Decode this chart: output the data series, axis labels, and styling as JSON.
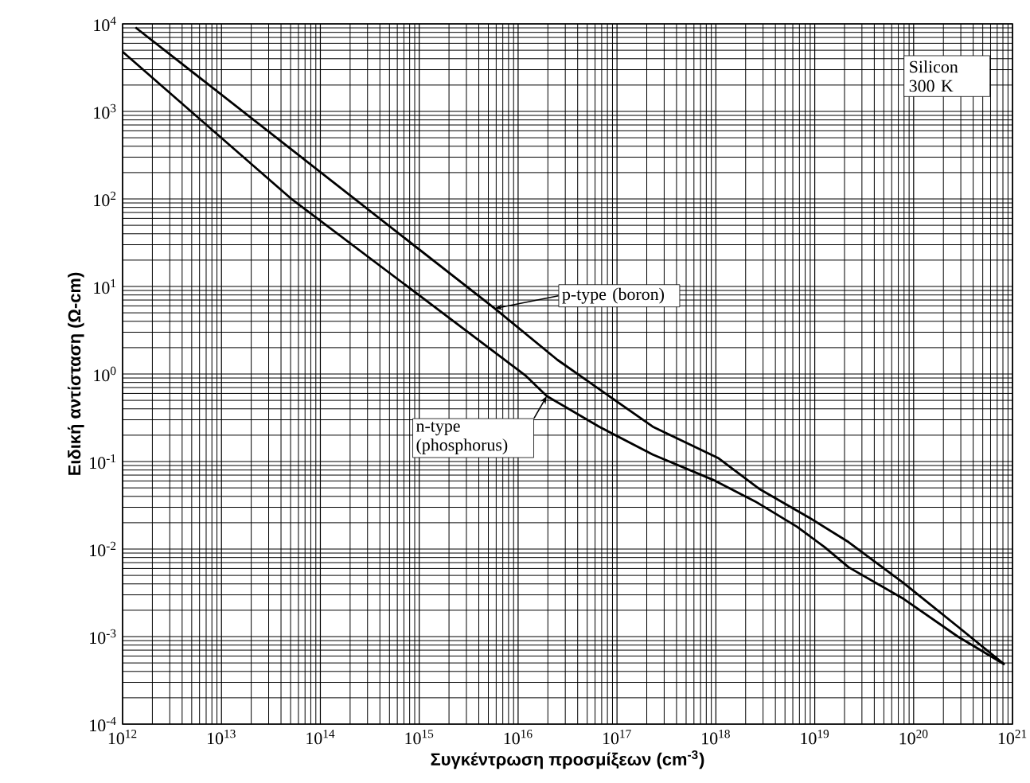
{
  "chart_data": {
    "type": "line",
    "xlabel": "Συγκέντρωση προσμίξεων (cm$^{-3}$)",
    "ylabel": "Ειδική αντίσταση (Ω-cm)",
    "log": "xy",
    "grid": true,
    "marker": "none",
    "line_style": "solid",
    "xlim": [
      1000000000000.0,
      1e+21
    ],
    "ylim": [
      0.0001,
      10000.0
    ],
    "xticks": [
      {
        "value": 1000000000000.0,
        "label": "10$^{12}$"
      },
      {
        "value": 10000000000000.0,
        "label": "10$^{13}$"
      },
      {
        "value": 100000000000000.0,
        "label": "10$^{14}$"
      },
      {
        "value": 1000000000000000.0,
        "label": "10$^{15}$"
      },
      {
        "value": 1e+16,
        "label": "10$^{16}$"
      },
      {
        "value": 1e+17,
        "label": "10$^{17}$"
      },
      {
        "value": 1e+18,
        "label": "10$^{18}$"
      },
      {
        "value": 1e+19,
        "label": "10$^{19}$"
      },
      {
        "value": 1e+20,
        "label": "10$^{20}$"
      },
      {
        "value": 1e+21,
        "label": "10$^{21}$"
      }
    ],
    "yticks": [
      {
        "value": 0.0001,
        "label": "10$^{-4}$"
      },
      {
        "value": 0.001,
        "label": "10$^{-3}$"
      },
      {
        "value": 0.01,
        "label": "10$^{-2}$"
      },
      {
        "value": 0.1,
        "label": "10$^{-1}$"
      },
      {
        "value": 1,
        "label": "10$^{0}$"
      },
      {
        "value": 10,
        "label": "10$^{1}$"
      },
      {
        "value": 100,
        "label": "10$^{2}$"
      },
      {
        "value": 1000,
        "label": "10$^{3}$"
      },
      {
        "value": 10000,
        "label": "10$^{4}$"
      }
    ],
    "series": [
      {
        "color": "#000000",
        "x": [
          1350000000000.0,
          5800000000000000.0,
          2.5e+16,
          2.3e+17,
          1.05e+18,
          2.8e+18,
          8.7e+18,
          2.2e+19,
          7.9e+19,
          2.8e+20,
          8.3e+20
        ],
        "values": [
          9100,
          5.6,
          1.45,
          0.25,
          0.11,
          0.048,
          0.023,
          0.012,
          0.0041,
          0.0013,
          0.00048
        ]
      },
      {
        "color": "#000000",
        "x": [
          1000000000000.0,
          51000000000000.0,
          1.2e+16,
          1.95e+16,
          6.6e+16,
          2.3e+17,
          9.3e+17,
          2.5e+18,
          6.6e+18,
          1.26e+19,
          2.2e+19,
          7.9e+19,
          2.8e+20,
          8.3e+20
        ],
        "values": [
          4800,
          100,
          0.95,
          0.56,
          0.25,
          0.12,
          0.062,
          0.035,
          0.018,
          0.0105,
          0.0062,
          0.0027,
          0.001,
          0.00048
        ]
      }
    ],
    "annotations": [
      "Silicon 300 K",
      {
        "text": "p-type (boron)",
        "x": 5800000000000000.0,
        "y": 5.6
      },
      {
        "text": "n-type (phosphorus)",
        "x": 1.95e+16,
        "y": 0.56
      }
    ]
  }
}
